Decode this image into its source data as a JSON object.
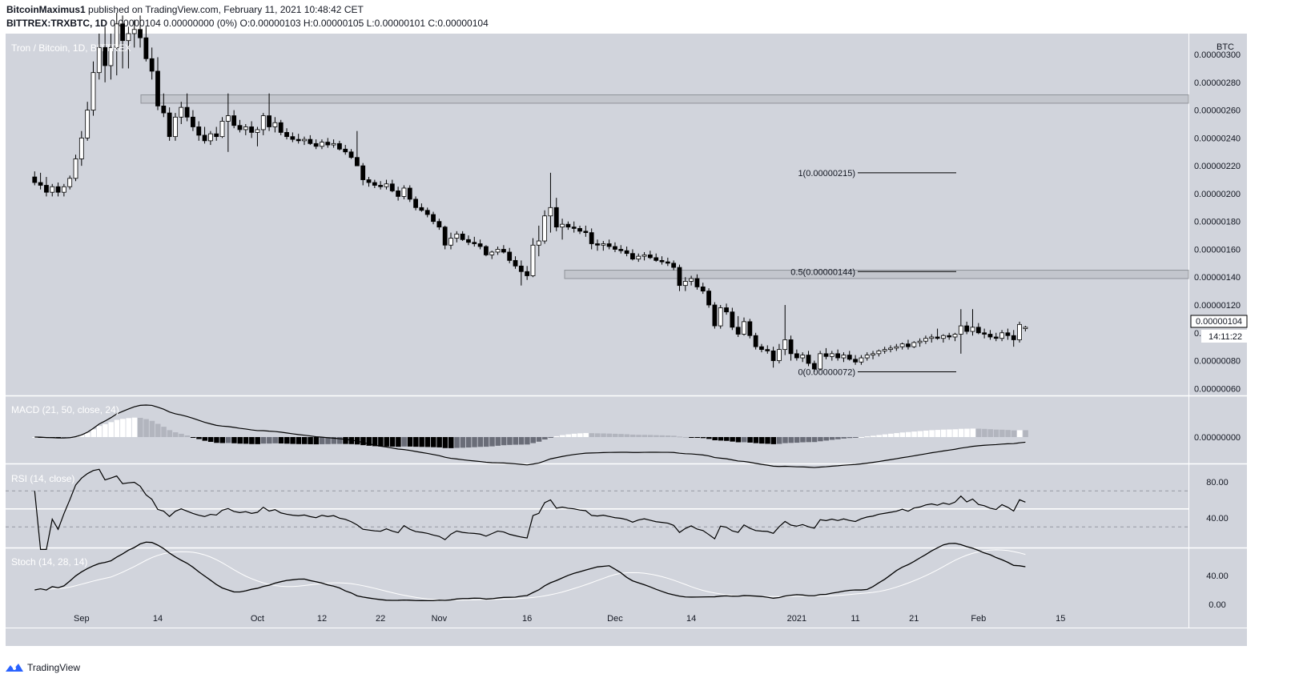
{
  "header": {
    "author": "BitcoinMaximus1",
    "published": "published on TradingView.com, February 11, 2021 10:48:42 CET",
    "symbol": "BITTREX:TRXBTC, 1D",
    "ohlc": "0.00000104 0.00000000 (0%) O:0.00000103 H:0.00000105 L:0.00000101 C:0.00000104"
  },
  "chart_title": "Tron / Bitcoin, 1D, BITTREX",
  "currency_label": "BTC",
  "last_price_label": "0.00000104",
  "countdown_label": "14:11:22",
  "fib_levels": [
    {
      "label": "1(0.00000215)",
      "value": 2.15
    },
    {
      "label": "0.5(0.00000144)",
      "value": 1.44
    },
    {
      "label": "0(0.00000072)",
      "value": 0.72
    }
  ],
  "indicators": {
    "macd_label": "MACD (21, 50, close, 24)",
    "rsi_label": "RSI (14, close)",
    "stoch_label": "Stoch (14, 28, 14)"
  },
  "footer": {
    "brand": "TradingView"
  },
  "colors": {
    "pane_bg": "#d1d4dc",
    "candle_up": "#ffffff",
    "candle_down": "#000000",
    "zone": "#c2c5cc"
  },
  "chart_data": {
    "type": "candlestick",
    "title": "Tron / Bitcoin, 1D, BITTREX",
    "ylabel": "BTC",
    "price_unit": "1e-6 BTC",
    "ylim": [
      0.55,
      3.15
    ],
    "y_ticks": [
      "0.00000300",
      "0.00000280",
      "0.00000260",
      "0.00000240",
      "0.00000220",
      "0.00000200",
      "0.00000180",
      "0.00000160",
      "0.00000140",
      "0.00000120",
      "0.00000100",
      "0.00000080",
      "0.00000060"
    ],
    "y_tick_values": [
      3.0,
      2.8,
      2.6,
      2.4,
      2.2,
      2.0,
      1.8,
      1.6,
      1.4,
      1.2,
      1.0,
      0.8,
      0.6
    ],
    "x_ticks": [
      "Sep",
      "14",
      "Oct",
      "12",
      "22",
      "Nov",
      "16",
      "Dec",
      "14",
      "2021",
      "11",
      "21",
      "Feb",
      "15"
    ],
    "x_tick_dates": [
      "2020-09-01",
      "2020-09-14",
      "2020-10-01",
      "2020-10-12",
      "2020-10-22",
      "2020-11-01",
      "2020-11-16",
      "2020-12-01",
      "2020-12-14",
      "2021-01-01",
      "2021-01-11",
      "2021-01-21",
      "2021-02-01",
      "2021-02-15"
    ],
    "resistance_zones": [
      [
        2.65,
        2.71
      ],
      [
        1.39,
        1.45
      ]
    ],
    "macd_ticks": [
      "0.00000000"
    ],
    "rsi_ticks": [
      "80.00",
      "40.00"
    ],
    "stoch_ticks": [
      "40.00",
      "0.00"
    ],
    "candles_start": "2020-08-24",
    "candles_ohlc": [
      [
        2.12,
        2.16,
        2.06,
        2.08
      ],
      [
        2.08,
        2.15,
        2.03,
        2.06
      ],
      [
        2.06,
        2.12,
        1.98,
        2.01
      ],
      [
        2.01,
        2.07,
        1.98,
        2.05
      ],
      [
        2.05,
        2.08,
        1.98,
        2.01
      ],
      [
        2.01,
        2.07,
        1.98,
        2.05
      ],
      [
        2.05,
        2.13,
        2.03,
        2.11
      ],
      [
        2.11,
        2.28,
        2.09,
        2.25
      ],
      [
        2.25,
        2.45,
        2.2,
        2.4
      ],
      [
        2.4,
        2.66,
        2.38,
        2.6
      ],
      [
        2.6,
        2.95,
        2.56,
        2.87
      ],
      [
        2.87,
        3.15,
        2.82,
        3.05
      ],
      [
        3.05,
        3.2,
        2.8,
        2.92
      ],
      [
        2.92,
        3.15,
        2.82,
        3.05
      ],
      [
        3.05,
        3.3,
        2.85,
        3.22
      ],
      [
        3.22,
        3.28,
        2.9,
        3.1
      ],
      [
        3.1,
        3.2,
        2.9,
        3.15
      ],
      [
        3.15,
        3.25,
        3.05,
        3.18
      ],
      [
        3.18,
        3.28,
        3.05,
        3.12
      ],
      [
        3.12,
        3.2,
        2.95,
        2.97
      ],
      [
        2.97,
        3.05,
        2.82,
        2.88
      ],
      [
        2.88,
        2.98,
        2.6,
        2.63
      ],
      [
        2.63,
        2.72,
        2.55,
        2.58
      ],
      [
        2.58,
        2.62,
        2.38,
        2.41
      ],
      [
        2.41,
        2.58,
        2.38,
        2.55
      ],
      [
        2.55,
        2.66,
        2.5,
        2.62
      ],
      [
        2.62,
        2.72,
        2.52,
        2.55
      ],
      [
        2.55,
        2.6,
        2.45,
        2.48
      ],
      [
        2.48,
        2.52,
        2.38,
        2.42
      ],
      [
        2.42,
        2.48,
        2.36,
        2.38
      ],
      [
        2.38,
        2.45,
        2.35,
        2.43
      ],
      [
        2.43,
        2.48,
        2.38,
        2.41
      ],
      [
        2.41,
        2.55,
        2.4,
        2.52
      ],
      [
        2.52,
        2.72,
        2.3,
        2.56
      ],
      [
        2.56,
        2.6,
        2.47,
        2.49
      ],
      [
        2.49,
        2.53,
        2.44,
        2.46
      ],
      [
        2.46,
        2.5,
        2.42,
        2.48
      ],
      [
        2.48,
        2.52,
        2.4,
        2.44
      ],
      [
        2.44,
        2.48,
        2.34,
        2.46
      ],
      [
        2.46,
        2.58,
        2.42,
        2.56
      ],
      [
        2.56,
        2.72,
        2.45,
        2.48
      ],
      [
        2.48,
        2.55,
        2.44,
        2.51
      ],
      [
        2.51,
        2.53,
        2.42,
        2.44
      ],
      [
        2.44,
        2.47,
        2.39,
        2.41
      ],
      [
        2.41,
        2.44,
        2.37,
        2.39
      ],
      [
        2.39,
        2.43,
        2.36,
        2.38
      ],
      [
        2.38,
        2.41,
        2.35,
        2.39
      ],
      [
        2.39,
        2.42,
        2.35,
        2.36
      ],
      [
        2.36,
        2.39,
        2.32,
        2.34
      ],
      [
        2.34,
        2.39,
        2.32,
        2.37
      ],
      [
        2.37,
        2.4,
        2.33,
        2.35
      ],
      [
        2.35,
        2.39,
        2.33,
        2.36
      ],
      [
        2.36,
        2.38,
        2.31,
        2.32
      ],
      [
        2.32,
        2.35,
        2.28,
        2.3
      ],
      [
        2.3,
        2.32,
        2.25,
        2.26
      ],
      [
        2.26,
        2.45,
        2.22,
        2.2
      ],
      [
        2.2,
        2.22,
        2.06,
        2.1
      ],
      [
        2.1,
        2.12,
        2.05,
        2.08
      ],
      [
        2.08,
        2.1,
        2.04,
        2.06
      ],
      [
        2.06,
        2.09,
        2.03,
        2.05
      ],
      [
        2.05,
        2.1,
        2.03,
        2.07
      ],
      [
        2.07,
        2.1,
        2.01,
        2.02
      ],
      [
        2.02,
        2.05,
        1.95,
        1.98
      ],
      [
        1.98,
        2.06,
        1.96,
        2.04
      ],
      [
        2.04,
        2.06,
        1.94,
        1.96
      ],
      [
        1.96,
        1.98,
        1.88,
        1.9
      ],
      [
        1.9,
        1.93,
        1.87,
        1.88
      ],
      [
        1.88,
        1.9,
        1.83,
        1.85
      ],
      [
        1.85,
        1.87,
        1.78,
        1.8
      ],
      [
        1.8,
        1.82,
        1.74,
        1.76
      ],
      [
        1.76,
        1.77,
        1.6,
        1.63
      ],
      [
        1.63,
        1.72,
        1.6,
        1.68
      ],
      [
        1.68,
        1.73,
        1.65,
        1.71
      ],
      [
        1.71,
        1.73,
        1.66,
        1.67
      ],
      [
        1.67,
        1.7,
        1.63,
        1.65
      ],
      [
        1.65,
        1.69,
        1.62,
        1.64
      ],
      [
        1.64,
        1.67,
        1.6,
        1.62
      ],
      [
        1.62,
        1.63,
        1.55,
        1.56
      ],
      [
        1.56,
        1.59,
        1.53,
        1.58
      ],
      [
        1.58,
        1.62,
        1.56,
        1.6
      ],
      [
        1.6,
        1.63,
        1.57,
        1.58
      ],
      [
        1.58,
        1.61,
        1.5,
        1.52
      ],
      [
        1.52,
        1.55,
        1.46,
        1.48
      ],
      [
        1.48,
        1.52,
        1.34,
        1.44
      ],
      [
        1.44,
        1.48,
        1.38,
        1.41
      ],
      [
        1.41,
        1.68,
        1.4,
        1.63
      ],
      [
        1.63,
        1.77,
        1.55,
        1.66
      ],
      [
        1.66,
        1.88,
        1.64,
        1.84
      ],
      [
        1.84,
        2.15,
        1.72,
        1.9
      ],
      [
        1.9,
        1.97,
        1.73,
        1.76
      ],
      [
        1.76,
        1.82,
        1.67,
        1.78
      ],
      [
        1.78,
        1.8,
        1.74,
        1.76
      ],
      [
        1.76,
        1.8,
        1.72,
        1.75
      ],
      [
        1.75,
        1.77,
        1.71,
        1.73
      ],
      [
        1.73,
        1.77,
        1.69,
        1.72
      ],
      [
        1.72,
        1.75,
        1.6,
        1.64
      ],
      [
        1.64,
        1.67,
        1.59,
        1.63
      ],
      [
        1.63,
        1.66,
        1.59,
        1.64
      ],
      [
        1.64,
        1.67,
        1.6,
        1.62
      ],
      [
        1.62,
        1.65,
        1.58,
        1.6
      ],
      [
        1.6,
        1.63,
        1.57,
        1.59
      ],
      [
        1.59,
        1.62,
        1.55,
        1.57
      ],
      [
        1.57,
        1.6,
        1.52,
        1.53
      ],
      [
        1.53,
        1.57,
        1.51,
        1.55
      ],
      [
        1.55,
        1.58,
        1.52,
        1.56
      ],
      [
        1.56,
        1.59,
        1.53,
        1.54
      ],
      [
        1.54,
        1.57,
        1.51,
        1.52
      ],
      [
        1.52,
        1.55,
        1.49,
        1.51
      ],
      [
        1.51,
        1.54,
        1.48,
        1.5
      ],
      [
        1.5,
        1.52,
        1.45,
        1.47
      ],
      [
        1.47,
        1.49,
        1.3,
        1.34
      ],
      [
        1.34,
        1.4,
        1.3,
        1.37
      ],
      [
        1.37,
        1.41,
        1.34,
        1.39
      ],
      [
        1.39,
        1.42,
        1.31,
        1.33
      ],
      [
        1.33,
        1.36,
        1.28,
        1.3
      ],
      [
        1.3,
        1.32,
        1.18,
        1.2
      ],
      [
        1.2,
        1.22,
        1.03,
        1.05
      ],
      [
        1.05,
        1.2,
        1.03,
        1.18
      ],
      [
        1.18,
        1.21,
        1.13,
        1.15
      ],
      [
        1.15,
        1.18,
        1.02,
        1.04
      ],
      [
        1.04,
        1.12,
        0.97,
        0.99
      ],
      [
        0.99,
        1.11,
        0.98,
        1.08
      ],
      [
        1.08,
        1.1,
        0.96,
        0.98
      ],
      [
        0.98,
        1.0,
        0.88,
        0.9
      ],
      [
        0.9,
        0.92,
        0.86,
        0.88
      ],
      [
        0.88,
        0.91,
        0.85,
        0.87
      ],
      [
        0.87,
        0.9,
        0.75,
        0.8
      ],
      [
        0.8,
        0.92,
        0.78,
        0.88
      ],
      [
        0.88,
        1.2,
        0.84,
        0.95
      ],
      [
        0.95,
        0.98,
        0.8,
        0.85
      ],
      [
        0.85,
        0.88,
        0.8,
        0.82
      ],
      [
        0.82,
        0.86,
        0.79,
        0.84
      ],
      [
        0.84,
        0.87,
        0.76,
        0.78
      ],
      [
        0.78,
        0.8,
        0.72,
        0.74
      ],
      [
        0.74,
        0.87,
        0.73,
        0.85
      ],
      [
        0.85,
        0.89,
        0.81,
        0.83
      ],
      [
        0.83,
        0.87,
        0.8,
        0.85
      ],
      [
        0.85,
        0.88,
        0.8,
        0.82
      ],
      [
        0.82,
        0.86,
        0.79,
        0.84
      ],
      [
        0.84,
        0.87,
        0.8,
        0.81
      ],
      [
        0.81,
        0.84,
        0.77,
        0.79
      ],
      [
        0.79,
        0.84,
        0.77,
        0.82
      ],
      [
        0.82,
        0.86,
        0.8,
        0.84
      ],
      [
        0.84,
        0.87,
        0.81,
        0.85
      ],
      [
        0.85,
        0.88,
        0.83,
        0.87
      ],
      [
        0.87,
        0.9,
        0.85,
        0.88
      ],
      [
        0.88,
        0.91,
        0.86,
        0.89
      ],
      [
        0.89,
        0.92,
        0.87,
        0.9
      ],
      [
        0.9,
        0.93,
        0.88,
        0.92
      ],
      [
        0.92,
        0.95,
        0.88,
        0.9
      ],
      [
        0.9,
        0.94,
        0.89,
        0.93
      ],
      [
        0.93,
        0.96,
        0.9,
        0.94
      ],
      [
        0.94,
        0.98,
        0.92,
        0.96
      ],
      [
        0.96,
        0.99,
        0.93,
        0.97
      ],
      [
        0.97,
        1.03,
        0.95,
        0.96
      ],
      [
        0.96,
        0.99,
        0.93,
        0.98
      ],
      [
        0.98,
        1.0,
        0.95,
        0.97
      ],
      [
        0.97,
        1.0,
        0.94,
        0.99
      ],
      [
        0.99,
        1.17,
        0.85,
        1.05
      ],
      [
        1.05,
        1.08,
        0.99,
        1.01
      ],
      [
        1.01,
        1.17,
        0.98,
        1.04
      ],
      [
        1.04,
        1.07,
        0.99,
        1.0
      ],
      [
        1.0,
        1.03,
        0.96,
        0.99
      ],
      [
        0.99,
        1.02,
        0.95,
        0.97
      ],
      [
        0.97,
        1.0,
        0.94,
        0.96
      ],
      [
        0.96,
        1.02,
        0.94,
        1.0
      ],
      [
        1.0,
        1.03,
        0.95,
        0.98
      ],
      [
        0.98,
        1.02,
        0.9,
        0.95
      ],
      [
        0.95,
        1.08,
        0.93,
        1.06
      ],
      [
        1.03,
        1.05,
        1.01,
        1.04
      ]
    ]
  }
}
